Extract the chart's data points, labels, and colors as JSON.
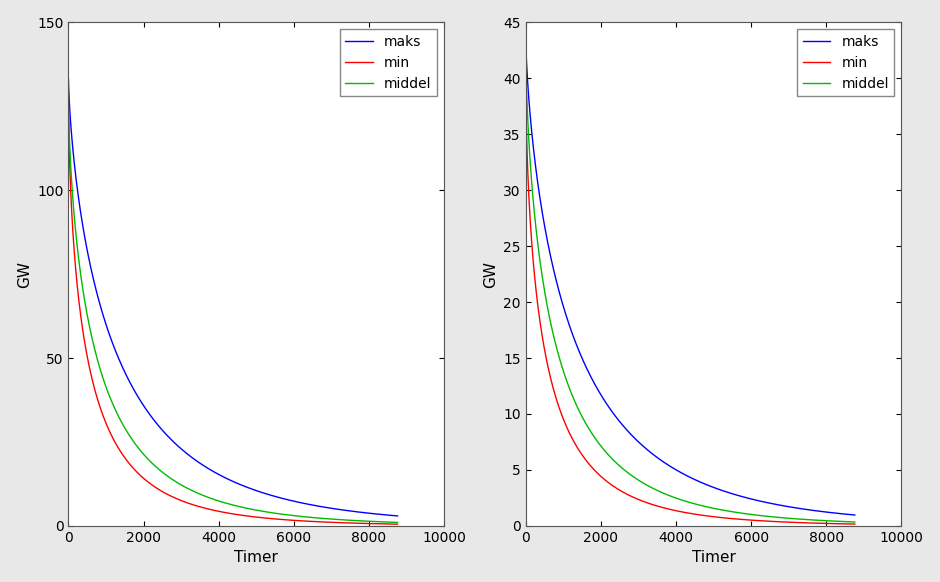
{
  "left_plot": {
    "ylim": [
      0,
      150
    ],
    "xlim": [
      0,
      10000
    ],
    "yticks": [
      0,
      50,
      100,
      150
    ],
    "xticks": [
      0,
      2000,
      4000,
      6000,
      8000,
      10000
    ],
    "ylabel": "GW",
    "xlabel": "Timer",
    "maks_start": 133.0,
    "min_start": 128.0,
    "middel_start": 127.0,
    "n_hours": 8760,
    "maks_shape": 0.55,
    "min_shape": 0.38,
    "middel_shape": 0.44
  },
  "right_plot": {
    "ylim": [
      0,
      45
    ],
    "xlim": [
      0,
      10000
    ],
    "yticks": [
      0,
      5,
      10,
      15,
      20,
      25,
      30,
      35,
      40,
      45
    ],
    "xticks": [
      0,
      2000,
      4000,
      6000,
      8000,
      10000
    ],
    "ylabel": "GW",
    "xlabel": "Timer",
    "maks_start": 43.5,
    "min_start": 40.0,
    "middel_start": 42.5,
    "n_hours": 8760,
    "maks_shape": 0.55,
    "min_shape": 0.38,
    "middel_shape": 0.44
  },
  "colors": {
    "maks": "#0000ff",
    "min": "#ff0000",
    "middel": "#00bb00"
  },
  "background_color": "#e8e8e8",
  "line_width": 1.0,
  "fig_width": 9.4,
  "fig_height": 5.82,
  "dpi": 100
}
